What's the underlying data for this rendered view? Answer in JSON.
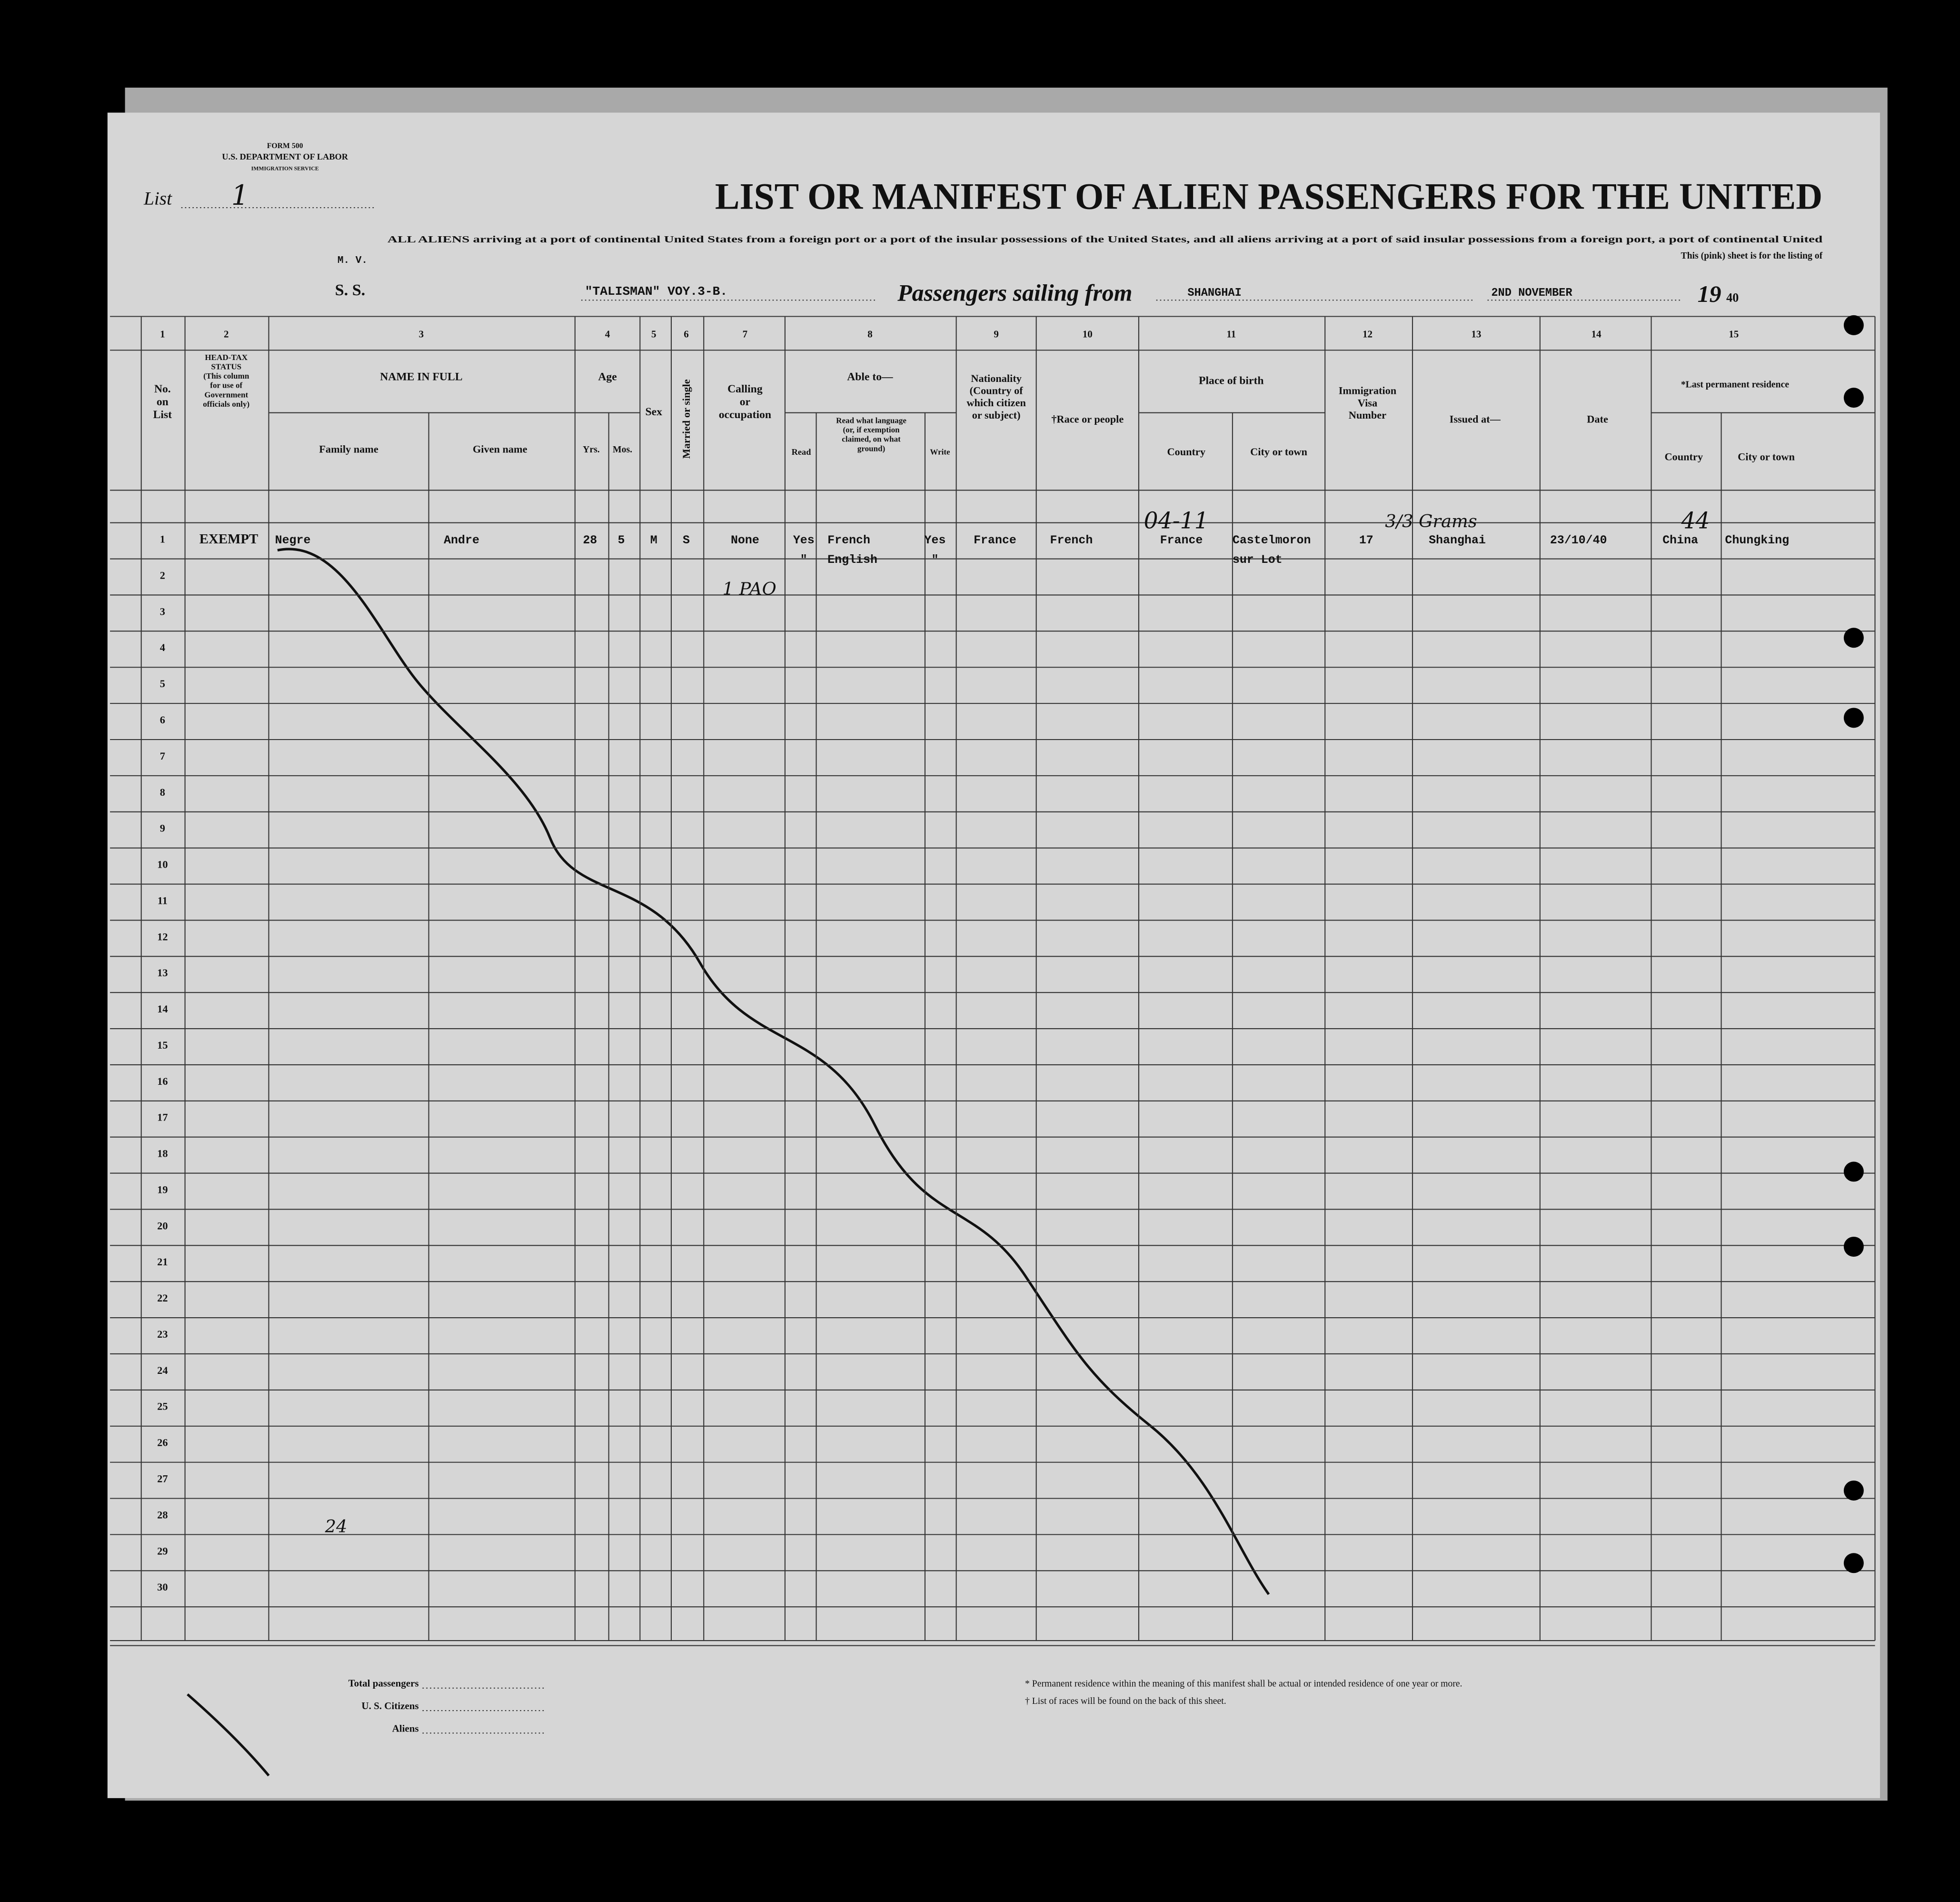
{
  "form": {
    "form_number": "FORM 500",
    "department": "U.S. DEPARTMENT OF LABOR",
    "service": "IMMIGRATION SERVICE",
    "list_label": "List",
    "list_number": "1"
  },
  "title": "LIST OR MANIFEST OF ALIEN PASSENGERS FOR THE UNITED",
  "instructions": [
    "ALL ALIENS arriving at a port of continental United States from a foreign port or a port of the insular possessions of the United States, and all aliens arriving at a port of said insular possessions from a foreign port, a port of continental United",
    "This (pink) sheet is for the listing of"
  ],
  "voyage": {
    "vessel_type_top": "M. V.",
    "vessel_type": "S. S.",
    "vessel": "\"TALISMAN\" VOY.3-B.",
    "sailing_label": "Passengers sailing from",
    "port": "SHANGHAI",
    "date": "2ND NOVEMBER",
    "year_prefix": "19",
    "year_suffix": "40"
  },
  "column_numbers": [
    "1",
    "2",
    "3",
    "4",
    "5",
    "6",
    "7",
    "8",
    "9",
    "10",
    "11",
    "12",
    "13",
    "14",
    "15"
  ],
  "headers": [
    {
      "lines": [
        "No.",
        "on",
        "List"
      ]
    },
    {
      "lines": [
        "HEAD-TAX",
        "STATUS",
        "(This column",
        "for use of",
        "Government",
        "officials only)"
      ]
    },
    {
      "lines": [
        "NAME IN FULL"
      ]
    },
    {
      "lines": [
        "Family name"
      ]
    },
    {
      "lines": [
        "Given name"
      ]
    },
    {
      "lines": [
        "Age"
      ]
    },
    {
      "lines": [
        "Yrs."
      ]
    },
    {
      "lines": [
        "Mos."
      ]
    },
    {
      "lines": [
        "Sex"
      ]
    },
    {
      "lines": [
        "Married or single"
      ]
    },
    {
      "lines": [
        "Calling",
        "or",
        "occupation"
      ]
    },
    {
      "lines": [
        "Able to—"
      ]
    },
    {
      "lines": [
        "Read"
      ]
    },
    {
      "lines": [
        "Read what language",
        "(or, if exemption",
        "claimed, on what",
        "ground)"
      ]
    },
    {
      "lines": [
        "Write"
      ]
    },
    {
      "lines": [
        "Nationality",
        "(Country of",
        "which citizen",
        "or subject)"
      ]
    },
    {
      "lines": [
        "†Race or people"
      ]
    },
    {
      "lines": [
        "Place of birth"
      ]
    },
    {
      "lines": [
        "Country"
      ]
    },
    {
      "lines": [
        "City or town"
      ]
    },
    {
      "lines": [
        "Immigration",
        "Visa",
        "Number"
      ]
    },
    {
      "lines": [
        "Issued at—"
      ]
    },
    {
      "lines": [
        "Date"
      ]
    },
    {
      "lines": [
        "*Last permanent residence"
      ]
    },
    {
      "lines": [
        "Country"
      ]
    },
    {
      "lines": [
        "City or town"
      ]
    }
  ],
  "row_numbers": [
    "1",
    "2",
    "3",
    "4",
    "5",
    "6",
    "7",
    "8",
    "9",
    "10",
    "11",
    "12",
    "13",
    "14",
    "15",
    "16",
    "17",
    "18",
    "19",
    "20",
    "21",
    "22",
    "23",
    "24",
    "25",
    "26",
    "27",
    "28",
    "29",
    "30"
  ],
  "rows": [
    {
      "head_tax": "EXEMPT",
      "family_name": "Negre",
      "given_name": "Andre",
      "age_years": "28",
      "age_months": "5",
      "sex": "M",
      "married": "S",
      "occupation": "None",
      "read": "Yes",
      "language": "French",
      "write": "Yes",
      "nationality": "France",
      "race": "French",
      "birth_country": "France",
      "birth_city": "Castelmoron",
      "visa": "17",
      "issued_at": "Shanghai",
      "date": "23/10/40",
      "res_country": "China",
      "res_city": "Chungking"
    },
    {
      "read": "\"",
      "language": "English",
      "write": "\"",
      "birth_city": "sur Lot"
    }
  ],
  "handwriting": [
    "04-11",
    "3/3 Grams",
    "44",
    "1 PAO",
    "24"
  ],
  "footer": {
    "totals": [
      "Total passengers",
      "U. S. Citizens",
      "Aliens"
    ],
    "notes": [
      "* Permanent residence within the meaning of this manifest shall be actual or intended residence of one year or more.",
      "† List of races will be found on the back of this sheet."
    ]
  }
}
